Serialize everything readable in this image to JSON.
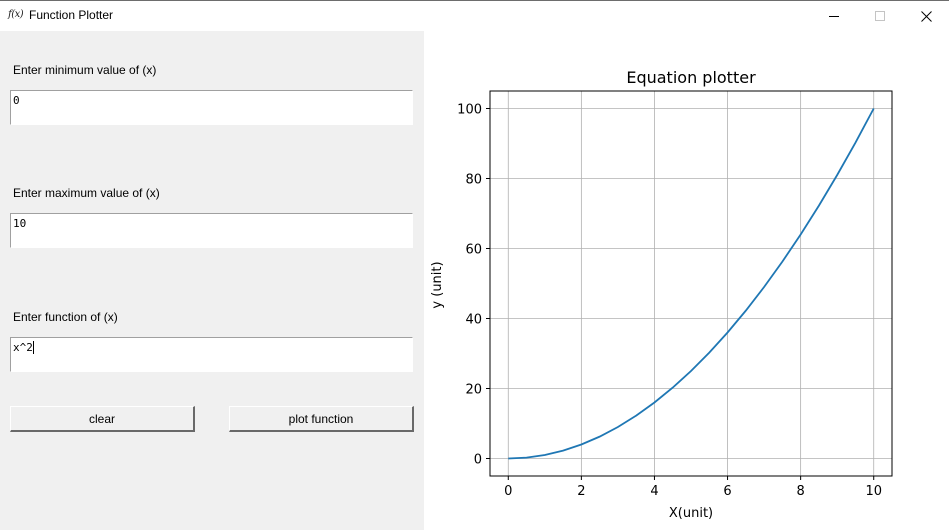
{
  "window": {
    "title": "Function Plotter",
    "icon_glyph": "f(x)",
    "controls": {
      "minimize": "minimize-icon",
      "maximize": "maximize-icon",
      "close": "close-icon"
    }
  },
  "form": {
    "min_label": "Enter minimum value of (x)",
    "min_value": "0",
    "max_label": "Enter maximum value of (x)",
    "max_value": "10",
    "func_label": "Enter function of (x)",
    "func_value": "x^2",
    "clear_button": "clear",
    "plot_button": "plot function"
  },
  "chart_data": {
    "type": "line",
    "title": "Equation plotter",
    "xlabel": "X(unit)",
    "ylabel": "y (unit)",
    "xlim": [
      -0.5,
      10.5
    ],
    "ylim": [
      -5,
      105
    ],
    "xticks": [
      0,
      2,
      4,
      6,
      8,
      10
    ],
    "yticks": [
      0,
      20,
      40,
      60,
      80,
      100
    ],
    "grid": true,
    "line_color": "#1f77b4",
    "series": [
      {
        "x": [
          0,
          0.5,
          1,
          1.5,
          2,
          2.5,
          3,
          3.5,
          4,
          4.5,
          5,
          5.5,
          6,
          6.5,
          7,
          7.5,
          8,
          8.5,
          9,
          9.5,
          10
        ],
        "values": [
          0,
          0.25,
          1,
          2.25,
          4,
          6.25,
          9,
          12.25,
          16,
          20.25,
          25,
          30.25,
          36,
          42.25,
          49,
          56.25,
          64,
          72.25,
          81,
          90.25,
          100
        ]
      }
    ]
  }
}
